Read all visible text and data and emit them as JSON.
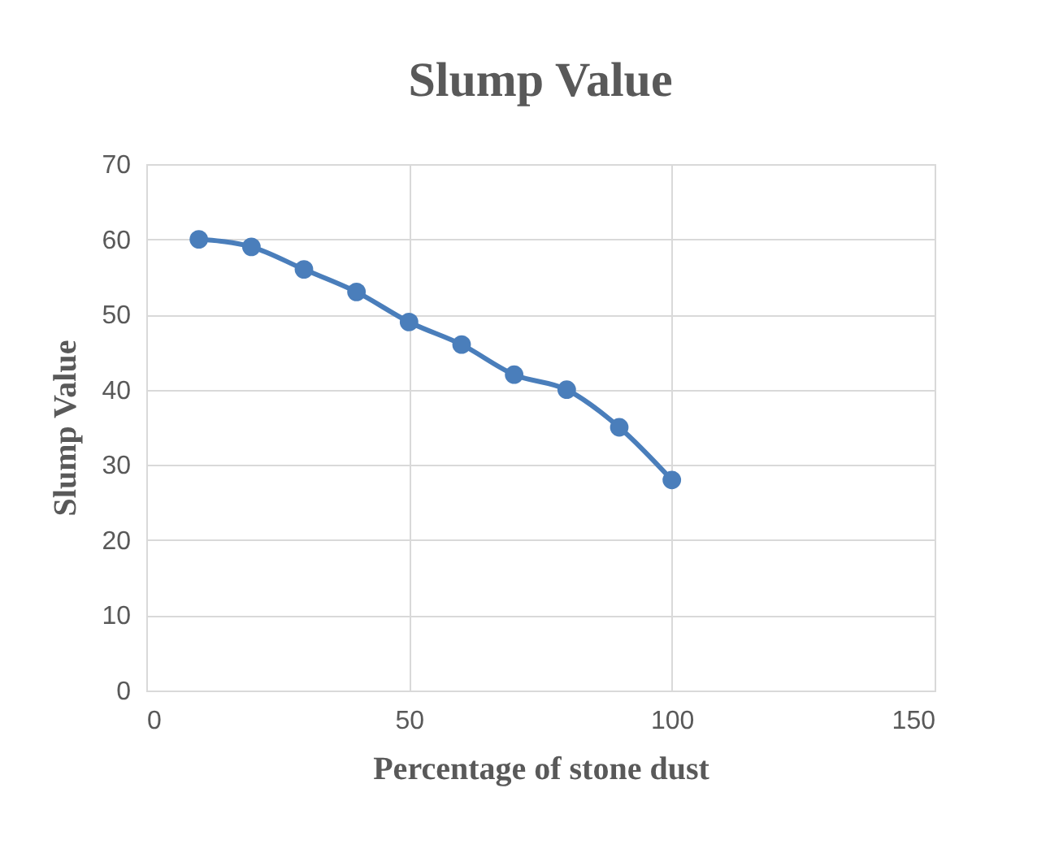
{
  "chart_data": {
    "type": "line",
    "title": "Slump Value",
    "xlabel": "Percentage of stone dust",
    "ylabel": "Slump Value",
    "x": [
      10,
      20,
      30,
      40,
      50,
      60,
      70,
      80,
      90,
      100
    ],
    "series": [
      {
        "color": "#4a7ebb",
        "values": [
          60,
          59,
          56,
          53,
          49,
          46,
          42,
          40,
          35,
          28
        ]
      }
    ],
    "xlim": [
      0,
      150
    ],
    "xticks": [
      0,
      50,
      100,
      150
    ],
    "ylim": [
      0,
      70
    ],
    "yticks": [
      0,
      10,
      20,
      30,
      40,
      50,
      60,
      70
    ],
    "grid": true,
    "marker": "circle",
    "line_style": "solid"
  }
}
